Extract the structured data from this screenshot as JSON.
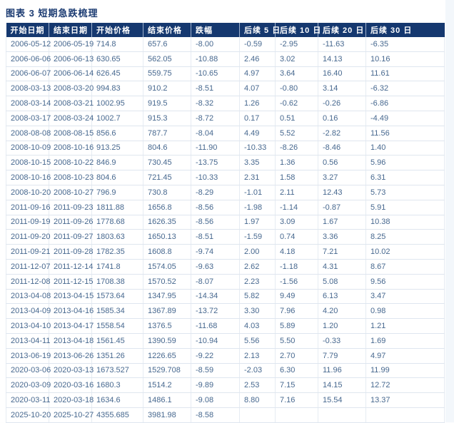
{
  "title": "图表 3  短期急跌梳理",
  "colors": {
    "header_bg": "#15386f",
    "header_text": "#ffffff",
    "cell_text": "#47688f",
    "title_text": "#1b3b72",
    "grid_line": "#dfe6ef"
  },
  "table": {
    "columns": [
      "开始日期",
      "结束日期",
      "开始价格",
      "结束价格",
      "跌幅",
      "后续 5 日",
      "后续 10 日",
      "后续 20 日",
      "后续 30 日"
    ],
    "rows": [
      [
        "2006-05-12",
        "2006-05-19",
        "714.8",
        "657.6",
        "-8.00",
        "-0.59",
        "-2.95",
        "-11.63",
        "-6.35"
      ],
      [
        "2006-06-06",
        "2006-06-13",
        "630.65",
        "562.05",
        "-10.88",
        "2.46",
        "3.02",
        "14.13",
        "10.16"
      ],
      [
        "2006-06-07",
        "2006-06-14",
        "626.45",
        "559.75",
        "-10.65",
        "4.97",
        "3.64",
        "16.40",
        "11.61"
      ],
      [
        "2008-03-13",
        "2008-03-20",
        "994.83",
        "910.2",
        "-8.51",
        "4.07",
        "-0.80",
        "3.14",
        "-6.32"
      ],
      [
        "2008-03-14",
        "2008-03-21",
        "1002.95",
        "919.5",
        "-8.32",
        "1.26",
        "-0.62",
        "-0.26",
        "-6.86"
      ],
      [
        "2008-03-17",
        "2008-03-24",
        "1002.7",
        "915.3",
        "-8.72",
        "0.17",
        "0.51",
        "0.16",
        "-4.49"
      ],
      [
        "2008-08-08",
        "2008-08-15",
        "856.6",
        "787.7",
        "-8.04",
        "4.49",
        "5.52",
        "-2.82",
        "11.56"
      ],
      [
        "2008-10-09",
        "2008-10-16",
        "913.25",
        "804.6",
        "-11.90",
        "-10.33",
        "-8.26",
        "-8.46",
        "1.40"
      ],
      [
        "2008-10-15",
        "2008-10-22",
        "846.9",
        "730.45",
        "-13.75",
        "3.35",
        "1.36",
        "0.56",
        "5.96"
      ],
      [
        "2008-10-16",
        "2008-10-23",
        "804.6",
        "721.45",
        "-10.33",
        "2.31",
        "1.58",
        "3.27",
        "6.31"
      ],
      [
        "2008-10-20",
        "2008-10-27",
        "796.9",
        "730.8",
        "-8.29",
        "-1.01",
        "2.11",
        "12.43",
        "5.73"
      ],
      [
        "2011-09-16",
        "2011-09-23",
        "1811.88",
        "1656.8",
        "-8.56",
        "-1.98",
        "-1.14",
        "-0.87",
        "5.91"
      ],
      [
        "2011-09-19",
        "2011-09-26",
        "1778.68",
        "1626.35",
        "-8.56",
        "1.97",
        "3.09",
        "1.67",
        "10.38"
      ],
      [
        "2011-09-20",
        "2011-09-27",
        "1803.63",
        "1650.13",
        "-8.51",
        "-1.59",
        "0.74",
        "3.36",
        "8.25"
      ],
      [
        "2011-09-21",
        "2011-09-28",
        "1782.35",
        "1608.8",
        "-9.74",
        "2.00",
        "4.18",
        "7.21",
        "10.02"
      ],
      [
        "2011-12-07",
        "2011-12-14",
        "1741.8",
        "1574.05",
        "-9.63",
        "2.62",
        "-1.18",
        "4.31",
        "8.67"
      ],
      [
        "2011-12-08",
        "2011-12-15",
        "1708.38",
        "1570.52",
        "-8.07",
        "2.23",
        "-1.56",
        "5.08",
        "9.56"
      ],
      [
        "2013-04-08",
        "2013-04-15",
        "1573.64",
        "1347.95",
        "-14.34",
        "5.82",
        "9.49",
        "6.13",
        "3.47"
      ],
      [
        "2013-04-09",
        "2013-04-16",
        "1585.34",
        "1367.89",
        "-13.72",
        "3.30",
        "7.96",
        "4.20",
        "0.98"
      ],
      [
        "2013-04-10",
        "2013-04-17",
        "1558.54",
        "1376.5",
        "-11.68",
        "4.03",
        "5.89",
        "1.20",
        "1.21"
      ],
      [
        "2013-04-11",
        "2013-04-18",
        "1561.45",
        "1390.59",
        "-10.94",
        "5.56",
        "5.50",
        "-0.33",
        "1.69"
      ],
      [
        "2013-06-19",
        "2013-06-26",
        "1351.26",
        "1226.65",
        "-9.22",
        "2.13",
        "2.70",
        "7.79",
        "4.97"
      ],
      [
        "2020-03-06",
        "2020-03-13",
        "1673.527",
        "1529.708",
        "-8.59",
        "-2.03",
        "6.30",
        "11.96",
        "11.99"
      ],
      [
        "2020-03-09",
        "2020-03-16",
        "1680.3",
        "1514.2",
        "-9.89",
        "2.53",
        "7.15",
        "14.15",
        "12.72"
      ],
      [
        "2020-03-11",
        "2020-03-18",
        "1634.6",
        "1486.1",
        "-9.08",
        "8.80",
        "7.16",
        "15.54",
        "13.37"
      ],
      [
        "2025-10-20",
        "2025-10-27",
        "4355.685",
        "3981.98",
        "-8.58",
        "",
        "",
        "",
        ""
      ]
    ]
  }
}
